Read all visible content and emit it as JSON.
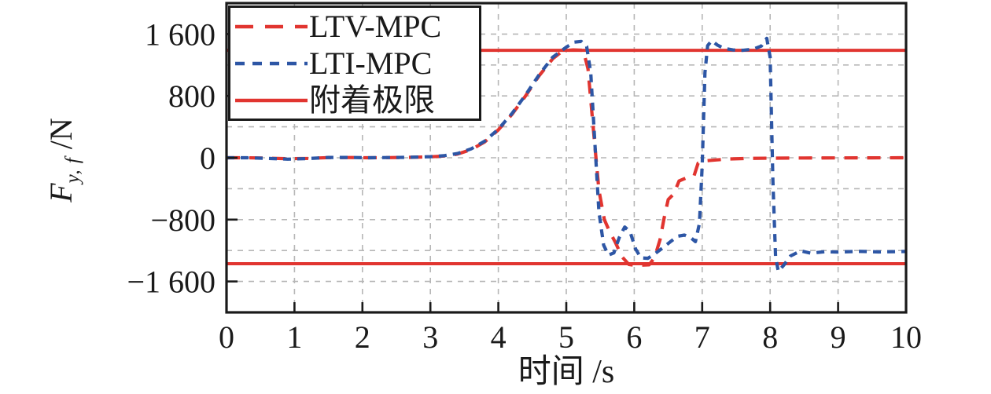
{
  "chart_data": {
    "type": "line",
    "title": "",
    "xlabel": "时间 /s",
    "ylabel": {
      "f": "F",
      "sub": "y, f",
      "unit": " /N"
    },
    "xlim": [
      0,
      10
    ],
    "ylim": [
      -2000,
      2000
    ],
    "x_ticks": [
      0,
      1,
      2,
      3,
      4,
      5,
      6,
      7,
      8,
      9,
      10
    ],
    "y_ticks": [
      {
        "v": 1600,
        "label": "1 600"
      },
      {
        "v": 800,
        "label": "800"
      },
      {
        "v": 0,
        "label": "0"
      },
      {
        "v": -800,
        "label": "−800"
      },
      {
        "v": -1600,
        "label": "−1 600"
      }
    ],
    "grid": {
      "on": true,
      "x_step": 1,
      "y_step": 400,
      "color": "#b6b6b6",
      "dash": "7,7"
    },
    "axis_color": "#1a1a1a",
    "legend_position": "top-left-inside",
    "series": [
      {
        "name": "LTV-MPC",
        "color": "#e13530",
        "dash": "17,12",
        "legend_dash": "23,15",
        "points": [
          [
            0,
            0
          ],
          [
            0.3,
            0
          ],
          [
            0.6,
            -5
          ],
          [
            0.9,
            -12
          ],
          [
            1.2,
            -8
          ],
          [
            1.5,
            2
          ],
          [
            1.8,
            3
          ],
          [
            2.1,
            0
          ],
          [
            2.4,
            2
          ],
          [
            2.7,
            5
          ],
          [
            3.0,
            12
          ],
          [
            3.2,
            22
          ],
          [
            3.4,
            48
          ],
          [
            3.6,
            105
          ],
          [
            3.8,
            205
          ],
          [
            4.0,
            360
          ],
          [
            4.2,
            560
          ],
          [
            4.4,
            800
          ],
          [
            4.6,
            1060
          ],
          [
            4.8,
            1280
          ],
          [
            4.95,
            1385
          ],
          [
            5.1,
            1395
          ],
          [
            5.25,
            1390
          ],
          [
            5.32,
            1150
          ],
          [
            5.4,
            350
          ],
          [
            5.48,
            -420
          ],
          [
            5.56,
            -800
          ],
          [
            5.64,
            -960
          ],
          [
            5.72,
            -1090
          ],
          [
            5.82,
            -1280
          ],
          [
            5.92,
            -1380
          ],
          [
            6.0,
            -1390
          ],
          [
            6.1,
            -1390
          ],
          [
            6.22,
            -1385
          ],
          [
            6.3,
            -1290
          ],
          [
            6.38,
            -1060
          ],
          [
            6.44,
            -780
          ],
          [
            6.5,
            -540
          ],
          [
            6.58,
            -470
          ],
          [
            6.66,
            -300
          ],
          [
            6.78,
            -255
          ],
          [
            6.88,
            -235
          ],
          [
            6.94,
            -70
          ],
          [
            7.05,
            -40
          ],
          [
            7.2,
            -28
          ],
          [
            7.4,
            -15
          ],
          [
            7.7,
            -8
          ],
          [
            8.0,
            -5
          ],
          [
            8.5,
            -3
          ],
          [
            9.0,
            -2
          ],
          [
            9.5,
            -1
          ],
          [
            10,
            0
          ]
        ]
      },
      {
        "name": "LTI-MPC",
        "color": "#2d56a5",
        "dash": "10,8",
        "legend_dash": "12,10",
        "points": [
          [
            0,
            0
          ],
          [
            0.3,
            0
          ],
          [
            0.6,
            -8
          ],
          [
            0.9,
            -18
          ],
          [
            1.2,
            -10
          ],
          [
            1.5,
            4
          ],
          [
            1.8,
            4
          ],
          [
            2.1,
            0
          ],
          [
            2.4,
            3
          ],
          [
            2.7,
            6
          ],
          [
            3.0,
            14
          ],
          [
            3.2,
            26
          ],
          [
            3.4,
            55
          ],
          [
            3.6,
            115
          ],
          [
            3.8,
            215
          ],
          [
            4.0,
            370
          ],
          [
            4.2,
            572
          ],
          [
            4.4,
            812
          ],
          [
            4.6,
            1072
          ],
          [
            4.8,
            1300
          ],
          [
            5.0,
            1430
          ],
          [
            5.12,
            1495
          ],
          [
            5.22,
            1505
          ],
          [
            5.3,
            1440
          ],
          [
            5.36,
            1100
          ],
          [
            5.42,
            200
          ],
          [
            5.48,
            -700
          ],
          [
            5.55,
            -1130
          ],
          [
            5.62,
            -1260
          ],
          [
            5.7,
            -1230
          ],
          [
            5.78,
            -1030
          ],
          [
            5.86,
            -895
          ],
          [
            5.94,
            -960
          ],
          [
            6.02,
            -1180
          ],
          [
            6.1,
            -1295
          ],
          [
            6.2,
            -1300
          ],
          [
            6.3,
            -1245
          ],
          [
            6.42,
            -1165
          ],
          [
            6.54,
            -1080
          ],
          [
            6.64,
            -1015
          ],
          [
            6.74,
            -1000
          ],
          [
            6.84,
            -1040
          ],
          [
            6.9,
            -1085
          ],
          [
            6.96,
            -850
          ],
          [
            7.0,
            -100
          ],
          [
            7.04,
            1100
          ],
          [
            7.08,
            1450
          ],
          [
            7.14,
            1515
          ],
          [
            7.22,
            1460
          ],
          [
            7.32,
            1415
          ],
          [
            7.45,
            1395
          ],
          [
            7.6,
            1390
          ],
          [
            7.75,
            1405
          ],
          [
            7.87,
            1445
          ],
          [
            7.95,
            1545
          ],
          [
            8.0,
            1300
          ],
          [
            8.04,
            -300
          ],
          [
            8.08,
            -1280
          ],
          [
            8.12,
            -1470
          ],
          [
            8.2,
            -1390
          ],
          [
            8.3,
            -1270
          ],
          [
            8.45,
            -1205
          ],
          [
            8.6,
            -1235
          ],
          [
            8.8,
            -1215
          ],
          [
            9.0,
            -1220
          ],
          [
            9.3,
            -1210
          ],
          [
            9.6,
            -1218
          ],
          [
            10,
            -1212
          ]
        ]
      }
    ],
    "limit": {
      "name": "附着极限",
      "color": "#e13530",
      "legend_dash": "",
      "values": [
        1390,
        -1370
      ]
    }
  }
}
